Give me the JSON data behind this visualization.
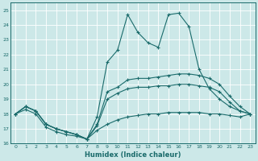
{
  "xlabel": "Humidex (Indice chaleur)",
  "xlim": [
    -0.5,
    23.5
  ],
  "ylim": [
    16,
    25.5
  ],
  "yticks": [
    16,
    17,
    18,
    19,
    20,
    21,
    22,
    23,
    24,
    25
  ],
  "xticks": [
    0,
    1,
    2,
    3,
    4,
    5,
    6,
    7,
    8,
    9,
    10,
    11,
    12,
    13,
    14,
    15,
    16,
    17,
    18,
    19,
    20,
    21,
    22,
    23
  ],
  "bg_color": "#cce8e8",
  "grid_color": "#b8d8d8",
  "line_color": "#1a6b6b",
  "line1": [
    18.0,
    18.5,
    18.2,
    17.3,
    17.0,
    16.8,
    16.6,
    16.3,
    17.8,
    21.5,
    22.3,
    24.7,
    23.5,
    22.8,
    22.5,
    24.7,
    24.8,
    23.9,
    21.0,
    19.7,
    19.0,
    18.5,
    18.2,
    18.0
  ],
  "line2": [
    18.0,
    18.5,
    18.2,
    17.3,
    17.0,
    16.8,
    16.6,
    16.3,
    17.3,
    19.5,
    19.8,
    20.3,
    20.4,
    20.4,
    20.5,
    20.6,
    20.7,
    20.7,
    20.6,
    20.4,
    20.0,
    19.2,
    18.5,
    18.0
  ],
  "line3": [
    18.0,
    18.5,
    18.2,
    17.3,
    17.0,
    16.8,
    16.6,
    16.3,
    17.2,
    19.0,
    19.4,
    19.7,
    19.8,
    19.8,
    19.9,
    19.9,
    20.0,
    20.0,
    19.9,
    19.8,
    19.5,
    18.8,
    18.2,
    18.0
  ],
  "line4": [
    18.0,
    18.3,
    18.0,
    17.1,
    16.8,
    16.6,
    16.5,
    16.3,
    16.9,
    17.3,
    17.6,
    17.8,
    17.9,
    18.0,
    18.0,
    18.1,
    18.1,
    18.1,
    18.1,
    18.0,
    18.0,
    17.9,
    17.8,
    18.0
  ]
}
